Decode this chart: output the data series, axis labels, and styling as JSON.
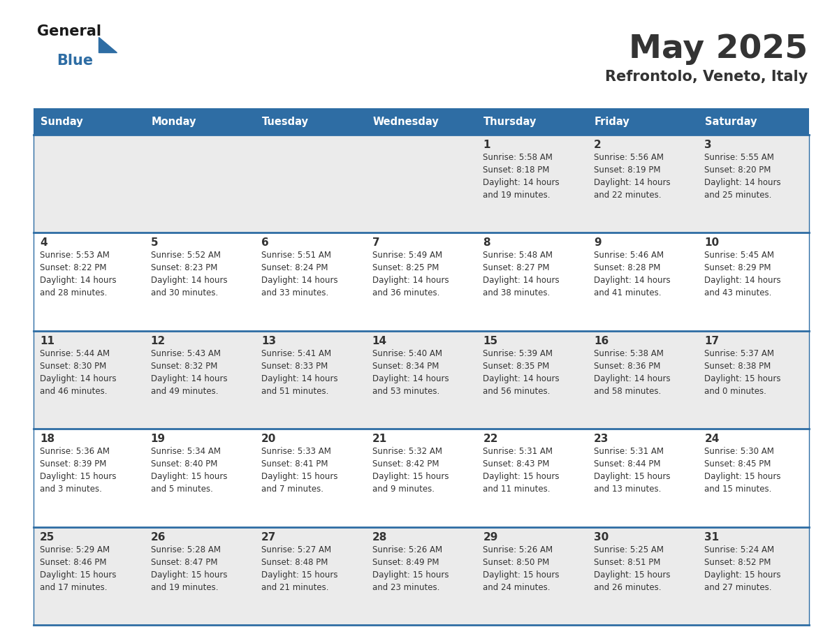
{
  "title": "May 2025",
  "subtitle": "Refrontolo, Veneto, Italy",
  "header_bg": "#2E6DA4",
  "header_text": "#FFFFFF",
  "row_bg_odd": "#EBEBEB",
  "row_bg_even": "#FFFFFF",
  "divider_color": "#2E6DA4",
  "text_color": "#333333",
  "days_of_week": [
    "Sunday",
    "Monday",
    "Tuesday",
    "Wednesday",
    "Thursday",
    "Friday",
    "Saturday"
  ],
  "calendar_data": [
    [
      {
        "day": "",
        "info": ""
      },
      {
        "day": "",
        "info": ""
      },
      {
        "day": "",
        "info": ""
      },
      {
        "day": "",
        "info": ""
      },
      {
        "day": "1",
        "info": "Sunrise: 5:58 AM\nSunset: 8:18 PM\nDaylight: 14 hours\nand 19 minutes."
      },
      {
        "day": "2",
        "info": "Sunrise: 5:56 AM\nSunset: 8:19 PM\nDaylight: 14 hours\nand 22 minutes."
      },
      {
        "day": "3",
        "info": "Sunrise: 5:55 AM\nSunset: 8:20 PM\nDaylight: 14 hours\nand 25 minutes."
      }
    ],
    [
      {
        "day": "4",
        "info": "Sunrise: 5:53 AM\nSunset: 8:22 PM\nDaylight: 14 hours\nand 28 minutes."
      },
      {
        "day": "5",
        "info": "Sunrise: 5:52 AM\nSunset: 8:23 PM\nDaylight: 14 hours\nand 30 minutes."
      },
      {
        "day": "6",
        "info": "Sunrise: 5:51 AM\nSunset: 8:24 PM\nDaylight: 14 hours\nand 33 minutes."
      },
      {
        "day": "7",
        "info": "Sunrise: 5:49 AM\nSunset: 8:25 PM\nDaylight: 14 hours\nand 36 minutes."
      },
      {
        "day": "8",
        "info": "Sunrise: 5:48 AM\nSunset: 8:27 PM\nDaylight: 14 hours\nand 38 minutes."
      },
      {
        "day": "9",
        "info": "Sunrise: 5:46 AM\nSunset: 8:28 PM\nDaylight: 14 hours\nand 41 minutes."
      },
      {
        "day": "10",
        "info": "Sunrise: 5:45 AM\nSunset: 8:29 PM\nDaylight: 14 hours\nand 43 minutes."
      }
    ],
    [
      {
        "day": "11",
        "info": "Sunrise: 5:44 AM\nSunset: 8:30 PM\nDaylight: 14 hours\nand 46 minutes."
      },
      {
        "day": "12",
        "info": "Sunrise: 5:43 AM\nSunset: 8:32 PM\nDaylight: 14 hours\nand 49 minutes."
      },
      {
        "day": "13",
        "info": "Sunrise: 5:41 AM\nSunset: 8:33 PM\nDaylight: 14 hours\nand 51 minutes."
      },
      {
        "day": "14",
        "info": "Sunrise: 5:40 AM\nSunset: 8:34 PM\nDaylight: 14 hours\nand 53 minutes."
      },
      {
        "day": "15",
        "info": "Sunrise: 5:39 AM\nSunset: 8:35 PM\nDaylight: 14 hours\nand 56 minutes."
      },
      {
        "day": "16",
        "info": "Sunrise: 5:38 AM\nSunset: 8:36 PM\nDaylight: 14 hours\nand 58 minutes."
      },
      {
        "day": "17",
        "info": "Sunrise: 5:37 AM\nSunset: 8:38 PM\nDaylight: 15 hours\nand 0 minutes."
      }
    ],
    [
      {
        "day": "18",
        "info": "Sunrise: 5:36 AM\nSunset: 8:39 PM\nDaylight: 15 hours\nand 3 minutes."
      },
      {
        "day": "19",
        "info": "Sunrise: 5:34 AM\nSunset: 8:40 PM\nDaylight: 15 hours\nand 5 minutes."
      },
      {
        "day": "20",
        "info": "Sunrise: 5:33 AM\nSunset: 8:41 PM\nDaylight: 15 hours\nand 7 minutes."
      },
      {
        "day": "21",
        "info": "Sunrise: 5:32 AM\nSunset: 8:42 PM\nDaylight: 15 hours\nand 9 minutes."
      },
      {
        "day": "22",
        "info": "Sunrise: 5:31 AM\nSunset: 8:43 PM\nDaylight: 15 hours\nand 11 minutes."
      },
      {
        "day": "23",
        "info": "Sunrise: 5:31 AM\nSunset: 8:44 PM\nDaylight: 15 hours\nand 13 minutes."
      },
      {
        "day": "24",
        "info": "Sunrise: 5:30 AM\nSunset: 8:45 PM\nDaylight: 15 hours\nand 15 minutes."
      }
    ],
    [
      {
        "day": "25",
        "info": "Sunrise: 5:29 AM\nSunset: 8:46 PM\nDaylight: 15 hours\nand 17 minutes."
      },
      {
        "day": "26",
        "info": "Sunrise: 5:28 AM\nSunset: 8:47 PM\nDaylight: 15 hours\nand 19 minutes."
      },
      {
        "day": "27",
        "info": "Sunrise: 5:27 AM\nSunset: 8:48 PM\nDaylight: 15 hours\nand 21 minutes."
      },
      {
        "day": "28",
        "info": "Sunrise: 5:26 AM\nSunset: 8:49 PM\nDaylight: 15 hours\nand 23 minutes."
      },
      {
        "day": "29",
        "info": "Sunrise: 5:26 AM\nSunset: 8:50 PM\nDaylight: 15 hours\nand 24 minutes."
      },
      {
        "day": "30",
        "info": "Sunrise: 5:25 AM\nSunset: 8:51 PM\nDaylight: 15 hours\nand 26 minutes."
      },
      {
        "day": "31",
        "info": "Sunrise: 5:24 AM\nSunset: 8:52 PM\nDaylight: 15 hours\nand 27 minutes."
      }
    ]
  ],
  "logo_text_general": "General",
  "logo_text_blue": "Blue",
  "logo_color_general": "#1a1a1a",
  "logo_color_blue": "#2E6DA4",
  "logo_triangle_color": "#2E6DA4",
  "fig_width": 11.88,
  "fig_height": 9.18,
  "dpi": 100
}
